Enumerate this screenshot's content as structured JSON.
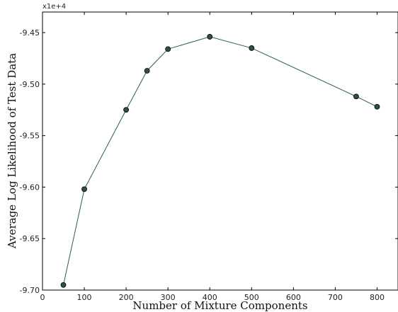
{
  "chart_data": {
    "type": "line",
    "title": "",
    "xlabel": "Number of Mixture Components",
    "ylabel": "Average Log Likelihood of Test Data",
    "y_offset_label": "x1e+4",
    "xlim": [
      0,
      850
    ],
    "ylim": [
      -9.7,
      -9.43
    ],
    "x_ticks": [
      0,
      100,
      200,
      300,
      400,
      500,
      600,
      700,
      800
    ],
    "x_tick_labels": [
      "0",
      "100",
      "200",
      "300",
      "400",
      "500",
      "600",
      "700",
      "800"
    ],
    "y_ticks": [
      -9.7,
      -9.65,
      -9.6,
      -9.55,
      -9.5,
      -9.45
    ],
    "y_tick_labels": [
      "-9.70",
      "-9.65",
      "-9.60",
      "-9.55",
      "-9.50",
      "-9.45"
    ],
    "grid": false,
    "legend": "none",
    "series": [
      {
        "x": [
          50,
          100,
          200,
          250,
          300,
          400,
          500,
          750,
          800
        ],
        "y": [
          -9.695,
          -9.602,
          -9.525,
          -9.487,
          -9.466,
          -9.454,
          -9.465,
          -9.512,
          -9.522
        ],
        "line_color": "#2f5e4e",
        "marker_color": "#2f4f4f"
      }
    ]
  }
}
